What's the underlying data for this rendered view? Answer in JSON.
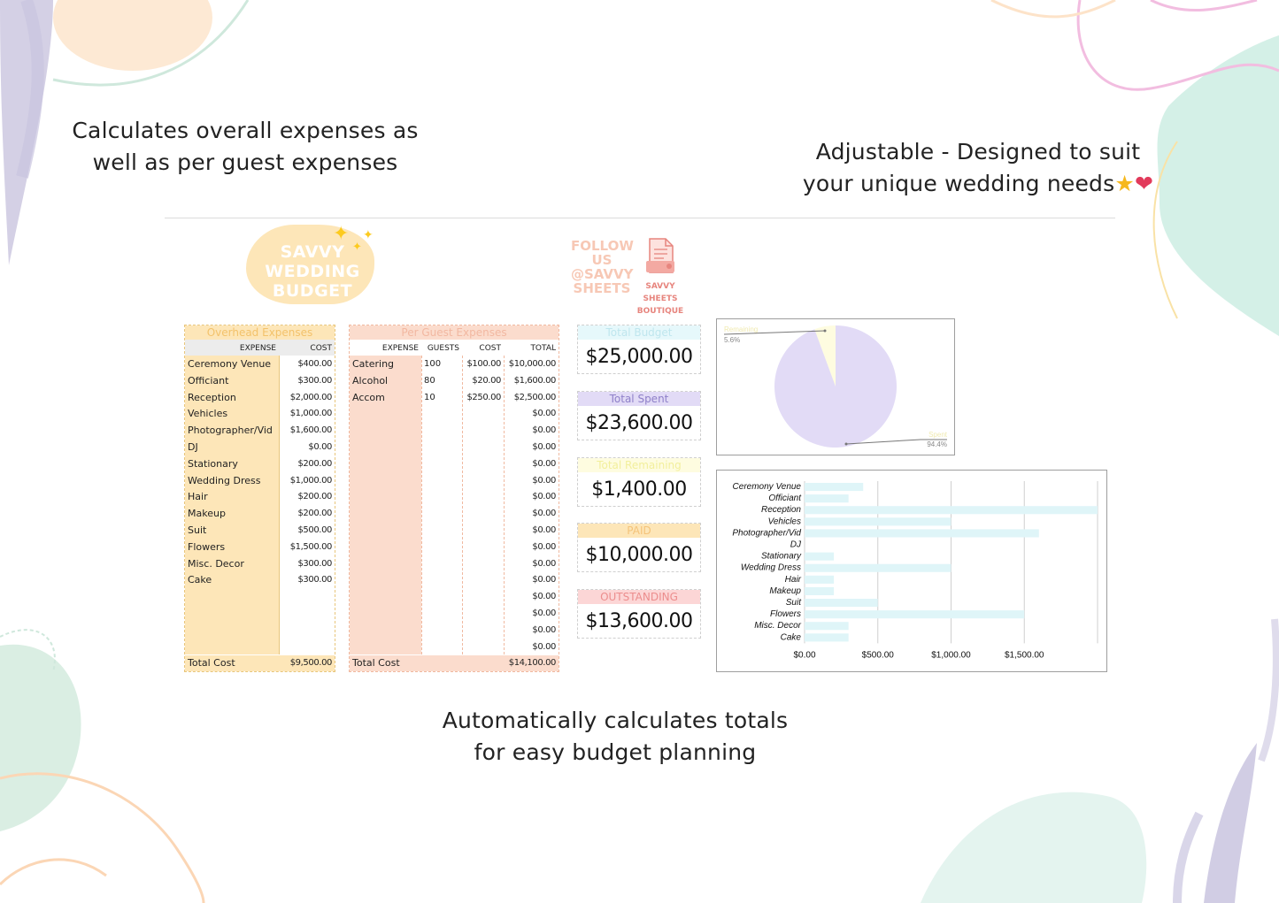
{
  "captions": {
    "left_line1": "Calculates overall expenses as",
    "left_line2": "well as per guest expenses",
    "right_line1": "Adjustable - Designed to suit",
    "right_line2": "your unique wedding needs",
    "bottom_line1": "Automatically calculates totals",
    "bottom_line2": "for easy budget planning"
  },
  "logo": {
    "line1": "SAVVY",
    "line2": "WEDDING",
    "line3": "BUDGET"
  },
  "follow": {
    "line1": "FOLLOW",
    "line2": "US",
    "line3": "@SAVVY",
    "line4": "SHEETS"
  },
  "boutique": {
    "line1": "SAVVY SHEETS",
    "line2": "BOUTIQUE"
  },
  "overhead": {
    "title": "Overhead Expenses",
    "col_expense": "EXPENSE",
    "col_cost": "COST",
    "rows": [
      {
        "name": "Ceremony Venue",
        "cost": "$400.00"
      },
      {
        "name": "Officiant",
        "cost": "$300.00"
      },
      {
        "name": "Reception",
        "cost": "$2,000.00"
      },
      {
        "name": "Vehicles",
        "cost": "$1,000.00"
      },
      {
        "name": "Photographer/Vid",
        "cost": "$1,600.00"
      },
      {
        "name": "DJ",
        "cost": "$0.00"
      },
      {
        "name": "Stationary",
        "cost": "$200.00"
      },
      {
        "name": "Wedding Dress",
        "cost": "$1,000.00"
      },
      {
        "name": "Hair",
        "cost": "$200.00"
      },
      {
        "name": "Makeup",
        "cost": "$200.00"
      },
      {
        "name": "Suit",
        "cost": "$500.00"
      },
      {
        "name": "Flowers",
        "cost": "$1,500.00"
      },
      {
        "name": "Misc. Decor",
        "cost": "$300.00"
      },
      {
        "name": "Cake",
        "cost": "$300.00"
      }
    ],
    "total_label": "Total Cost",
    "total_value": "$9,500.00"
  },
  "per_guest": {
    "title": "Per Guest Expenses",
    "col_expense": "EXPENSE",
    "col_guests": "GUESTS",
    "col_cost": "COST",
    "col_total": "TOTAL",
    "rows": [
      {
        "name": "Catering",
        "guests": "100",
        "cost": "$100.00",
        "total": "$10,000.00"
      },
      {
        "name": "Alcohol",
        "guests": "80",
        "cost": "$20.00",
        "total": "$1,600.00"
      },
      {
        "name": "Accom",
        "guests": "10",
        "cost": "$250.00",
        "total": "$2,500.00"
      },
      {
        "name": "",
        "guests": "",
        "cost": "",
        "total": "$0.00"
      },
      {
        "name": "",
        "guests": "",
        "cost": "",
        "total": "$0.00"
      },
      {
        "name": "",
        "guests": "",
        "cost": "",
        "total": "$0.00"
      },
      {
        "name": "",
        "guests": "",
        "cost": "",
        "total": "$0.00"
      },
      {
        "name": "",
        "guests": "",
        "cost": "",
        "total": "$0.00"
      },
      {
        "name": "",
        "guests": "",
        "cost": "",
        "total": "$0.00"
      },
      {
        "name": "",
        "guests": "",
        "cost": "",
        "total": "$0.00"
      },
      {
        "name": "",
        "guests": "",
        "cost": "",
        "total": "$0.00"
      },
      {
        "name": "",
        "guests": "",
        "cost": "",
        "total": "$0.00"
      },
      {
        "name": "",
        "guests": "",
        "cost": "",
        "total": "$0.00"
      },
      {
        "name": "",
        "guests": "",
        "cost": "",
        "total": "$0.00"
      },
      {
        "name": "",
        "guests": "",
        "cost": "",
        "total": "$0.00"
      },
      {
        "name": "",
        "guests": "",
        "cost": "",
        "total": "$0.00"
      },
      {
        "name": "",
        "guests": "",
        "cost": "",
        "total": "$0.00"
      },
      {
        "name": "",
        "guests": "",
        "cost": "",
        "total": "$0.00"
      }
    ],
    "total_label": "Total Cost",
    "total_value": "$14,100.00"
  },
  "summary": [
    {
      "label": "Total Budget",
      "value": "$25,000.00",
      "label_color": "#bfe6ee",
      "bg": "#e6f8fb"
    },
    {
      "label": "Total Spent",
      "value": "$23,600.00",
      "label_color": "#8f80c9",
      "bg": "#e2dbf6"
    },
    {
      "label": "Total Remaining",
      "value": "$1,400.00",
      "label_color": "#f2ef9c",
      "bg": "#fefce0"
    },
    {
      "label": "PAID",
      "value": "$10,000.00",
      "label_color": "#f4c37a",
      "bg": "#fde6b8"
    },
    {
      "label": "OUTSTANDING",
      "value": "$13,600.00",
      "label_color": "#ec8d8d",
      "bg": "#fcd6d6"
    }
  ],
  "colors": {
    "overhead_fill": "#fde6b8",
    "per_guest_fill": "#fbdccd",
    "pie_spent": "#e2dbf6",
    "pie_remaining": "#fefce0",
    "bar_fill": "#dff5f8"
  },
  "chart_data": [
    {
      "type": "pie",
      "slices": [
        {
          "label": "Remaining",
          "value": 5.6,
          "pct_label": "5.6%"
        },
        {
          "label": "Spent",
          "value": 94.4,
          "pct_label": "94.4%"
        }
      ]
    },
    {
      "type": "bar",
      "orientation": "horizontal",
      "categories": [
        "Ceremony Venue",
        "Officiant",
        "Reception",
        "Vehicles",
        "Photographer/Vid",
        "DJ",
        "Stationary",
        "Wedding Dress",
        "Hair",
        "Makeup",
        "Suit",
        "Flowers",
        "Misc. Decor",
        "Cake"
      ],
      "values": [
        400,
        300,
        2000,
        1000,
        1600,
        0,
        200,
        1000,
        200,
        200,
        500,
        1500,
        300,
        300
      ],
      "xlim": [
        0,
        2000
      ],
      "xticks": [
        "$0.00",
        "$500.00",
        "$1,000.00",
        "$1,500.00"
      ],
      "grid": true
    }
  ]
}
